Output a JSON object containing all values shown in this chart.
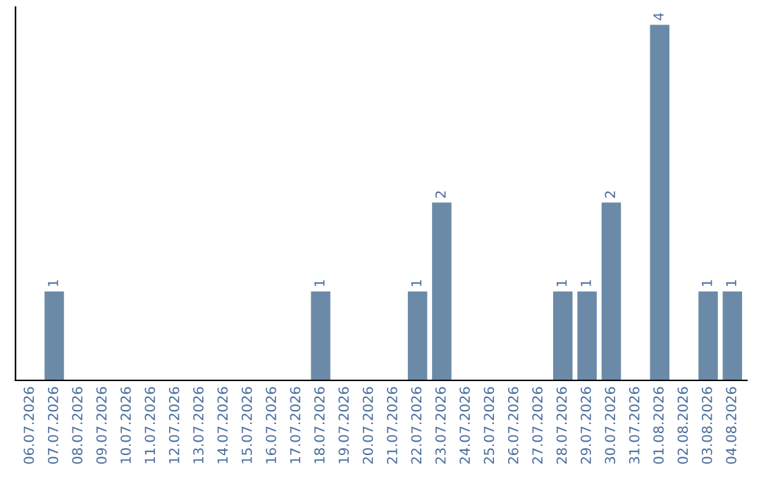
{
  "chart_data": {
    "type": "bar",
    "categories": [
      "06.07.2026",
      "07.07.2026",
      "08.07.2026",
      "09.07.2026",
      "10.07.2026",
      "11.07.2026",
      "12.07.2026",
      "13.07.2026",
      "14.07.2026",
      "15.07.2026",
      "16.07.2026",
      "17.07.2026",
      "18.07.2026",
      "19.07.2026",
      "20.07.2026",
      "21.07.2026",
      "22.07.2026",
      "23.07.2026",
      "24.07.2026",
      "25.07.2026",
      "26.07.2026",
      "27.07.2026",
      "28.07.2026",
      "29.07.2026",
      "30.07.2026",
      "31.07.2026",
      "01.08.2026",
      "02.08.2026",
      "03.08.2026",
      "04.08.2026"
    ],
    "values": [
      0,
      1,
      0,
      0,
      0,
      0,
      0,
      0,
      0,
      0,
      0,
      0,
      1,
      0,
      0,
      0,
      1,
      2,
      0,
      0,
      0,
      0,
      1,
      1,
      2,
      0,
      4,
      0,
      1,
      1
    ],
    "value_labels": [
      null,
      "1",
      null,
      null,
      null,
      null,
      null,
      null,
      null,
      null,
      null,
      null,
      "1",
      null,
      null,
      null,
      "1",
      "2",
      null,
      null,
      null,
      null,
      "1",
      "1",
      "2",
      null,
      "4",
      null,
      "1",
      "1"
    ],
    "color": "#6b8aa8",
    "tick_labels": "x",
    "grid": false,
    "legend": false
  }
}
